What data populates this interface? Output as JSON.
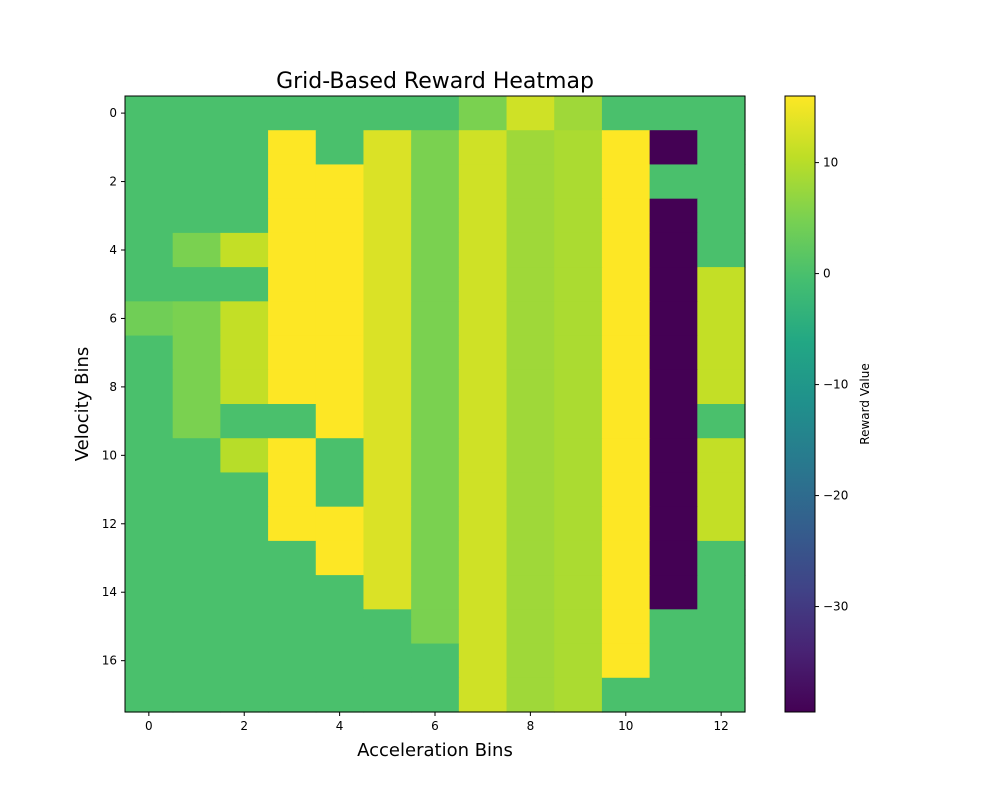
{
  "chart_data": {
    "type": "heatmap",
    "title": "Grid-Based Reward Heatmap",
    "xlabel": "Acceleration Bins",
    "ylabel": "Velocity Bins",
    "colorbar_label": "Reward Value",
    "colormap": "viridis",
    "vmin": -39.5,
    "vmax": 16,
    "x_ticks": [
      0,
      2,
      4,
      6,
      8,
      10,
      12
    ],
    "y_ticks": [
      0,
      2,
      4,
      6,
      8,
      10,
      12,
      14,
      16
    ],
    "colorbar_ticks": [
      10,
      0,
      -10,
      -20,
      -30
    ],
    "colorbar_tick_labels": [
      "10",
      "0",
      "−10",
      "−20",
      "−30"
    ],
    "n_cols": 13,
    "n_rows": 18,
    "values": [
      [
        0,
        0,
        0,
        0,
        0,
        0,
        0,
        5,
        12,
        8,
        0,
        0,
        0
      ],
      [
        0,
        0,
        0,
        16,
        0,
        13,
        5,
        12,
        8,
        9,
        16,
        -39.5,
        0
      ],
      [
        0,
        0,
        0,
        16,
        16,
        13,
        5,
        12,
        8,
        9,
        16,
        0,
        0
      ],
      [
        0,
        0,
        0,
        16,
        16,
        13,
        5,
        12,
        8,
        9,
        16,
        -39.5,
        0
      ],
      [
        0,
        5,
        11,
        16,
        16,
        13,
        5,
        12,
        8,
        9,
        16,
        -39.5,
        0
      ],
      [
        0,
        0,
        0,
        16,
        16,
        13,
        5,
        12,
        8,
        9,
        16,
        -39.5,
        11
      ],
      [
        4,
        5,
        11,
        16,
        16,
        13,
        5,
        12,
        8,
        9,
        16,
        -39.5,
        11
      ],
      [
        0,
        5,
        11,
        16,
        16,
        13,
        5,
        12,
        8,
        9,
        16,
        -39.5,
        11
      ],
      [
        0,
        5,
        11,
        16,
        16,
        13,
        5,
        12,
        8,
        9,
        16,
        -39.5,
        11
      ],
      [
        0,
        5,
        0,
        0,
        16,
        13,
        5,
        12,
        8,
        9,
        16,
        -39.5,
        0
      ],
      [
        0,
        0,
        10,
        16,
        0,
        13,
        5,
        12,
        8,
        9,
        16,
        -39.5,
        11
      ],
      [
        0,
        0,
        0,
        16,
        0,
        13,
        5,
        12,
        8,
        9,
        16,
        -39.5,
        11
      ],
      [
        0,
        0,
        0,
        16,
        16,
        13,
        5,
        12,
        8,
        9,
        16,
        -39.5,
        11
      ],
      [
        0,
        0,
        0,
        0,
        16,
        13,
        5,
        12,
        8,
        9,
        16,
        -39.5,
        0
      ],
      [
        0,
        0,
        0,
        0,
        0,
        13,
        5,
        12,
        8,
        9,
        16,
        -39.5,
        0
      ],
      [
        0,
        0,
        0,
        0,
        0,
        0,
        5,
        12,
        8,
        9,
        16,
        0,
        0
      ],
      [
        0,
        0,
        0,
        0,
        0,
        0,
        0,
        12,
        8,
        9,
        16,
        0,
        0
      ],
      [
        0,
        0,
        0,
        0,
        0,
        0,
        0,
        12,
        8,
        9,
        0,
        0,
        0
      ]
    ]
  }
}
